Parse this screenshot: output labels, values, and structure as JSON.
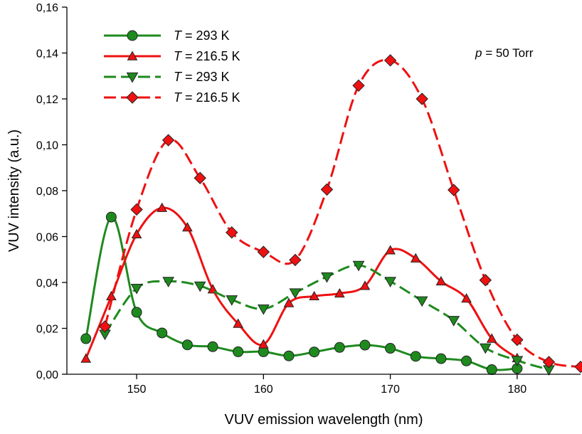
{
  "chart_data": {
    "type": "line",
    "title": "",
    "xlabel": "VUV emission wavelength (nm)",
    "ylabel": "VUV intensity (a.u.)",
    "xlim": [
      144.5,
      185
    ],
    "ylim": [
      0,
      0.16
    ],
    "xticks": [
      150,
      160,
      170,
      180
    ],
    "xtick_labels": [
      "150",
      "160",
      "170",
      "180"
    ],
    "yticks": [
      0,
      0.02,
      0.04,
      0.06,
      0.08,
      0.1,
      0.12,
      0.14,
      0.16
    ],
    "ytick_labels": [
      "0,00",
      "0,02",
      "0,04",
      "0,06",
      "0,08",
      "0,10",
      "0,12",
      "0,14",
      "0,16"
    ],
    "grid": false,
    "legend_position": "top-left",
    "annotations": [
      {
        "italic": "p",
        "text": " = 50 Torr"
      }
    ],
    "series": [
      {
        "name": "T = 293 K",
        "legend_italic": "T",
        "legend_rest": " = 293 K",
        "color": "#1e8a1e",
        "line": "solid",
        "marker": "circle",
        "x": [
          146,
          148,
          150,
          152,
          154,
          156,
          158,
          160,
          162,
          164,
          166,
          168,
          170,
          172,
          174,
          176,
          178,
          180
        ],
        "y": [
          0.0155,
          0.0685,
          0.027,
          0.018,
          0.0128,
          0.012,
          0.0098,
          0.0098,
          0.008,
          0.0097,
          0.0117,
          0.0127,
          0.0113,
          0.0078,
          0.0068,
          0.0058,
          0.002,
          0.0025
        ]
      },
      {
        "name": "T = 216.5 K",
        "legend_italic": "T",
        "legend_rest": " = 216.5 K",
        "color": "#ee1111",
        "line": "solid",
        "marker": "triangle-up",
        "x": [
          146,
          148,
          150,
          152,
          154,
          156,
          158,
          160,
          162,
          164,
          166,
          168,
          170,
          172,
          174,
          176,
          178,
          180
        ],
        "y": [
          0.0068,
          0.034,
          0.061,
          0.0725,
          0.064,
          0.037,
          0.022,
          0.013,
          0.031,
          0.034,
          0.0352,
          0.0385,
          0.054,
          0.0505,
          0.0405,
          0.033,
          0.0155,
          0.007
        ]
      },
      {
        "name": "T = 293 K",
        "legend_italic": "T",
        "legend_rest": " = 293 K",
        "color": "#1e8a1e",
        "line": "dashed",
        "marker": "triangle-down",
        "x": [
          147.5,
          150,
          152.5,
          155,
          157.5,
          160,
          162.5,
          165,
          167.5,
          170,
          172.5,
          175,
          177.5,
          180,
          182.5
        ],
        "y": [
          0.0175,
          0.0375,
          0.0405,
          0.0385,
          0.0325,
          0.0285,
          0.0355,
          0.0425,
          0.0475,
          0.0405,
          0.032,
          0.0235,
          0.0115,
          0.006,
          0.002
        ]
      },
      {
        "name": "T = 216.5 K",
        "legend_italic": "T",
        "legend_rest": " = 216.5 K",
        "color": "#ee1111",
        "line": "dashed",
        "marker": "diamond",
        "x": [
          147.5,
          150,
          152.5,
          155,
          157.5,
          160,
          162.5,
          165,
          167.5,
          170,
          172.5,
          175,
          177.5,
          180,
          182.5,
          185
        ],
        "y": [
          0.0208,
          0.0718,
          0.102,
          0.0855,
          0.0618,
          0.0533,
          0.0498,
          0.0805,
          0.1258,
          0.1368,
          0.12,
          0.0803,
          0.041,
          0.015,
          0.0053,
          0.0032
        ]
      }
    ]
  }
}
